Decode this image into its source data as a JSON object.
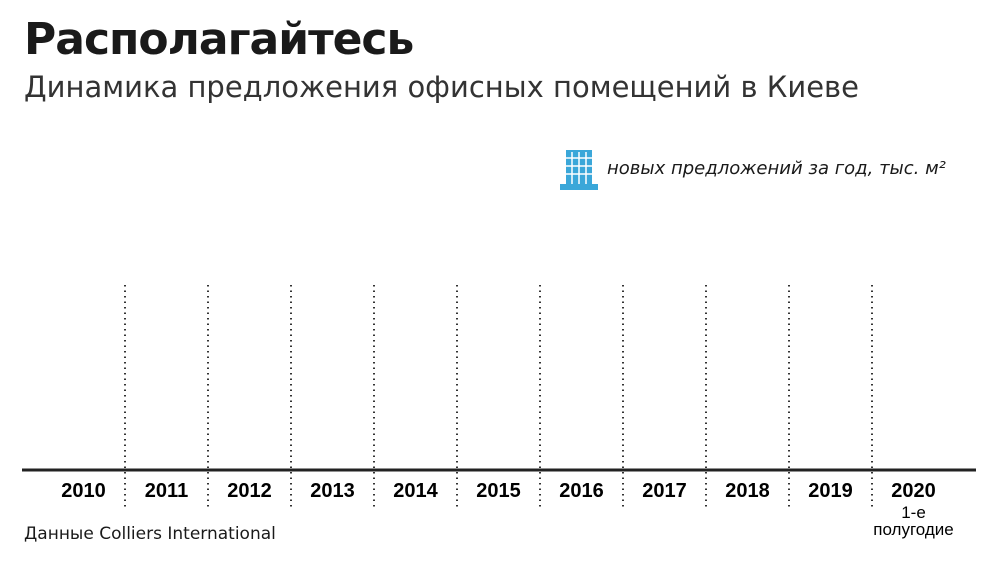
{
  "chart_data": {
    "type": "bar",
    "title": "Располагайтесь",
    "subtitle": "Динамика предложения офисных помещений в Киеве",
    "legend": "новых предложений за год, тыс. м²",
    "color": "#3aa7d9",
    "categories": [
      "2010",
      "2011",
      "2012",
      "2013",
      "2014",
      "2015",
      "2016",
      "2017",
      "2018",
      "2019",
      "2020"
    ],
    "annotations": [
      "1-е полугодие"
    ],
    "source": "Данные Colliers International"
  }
}
